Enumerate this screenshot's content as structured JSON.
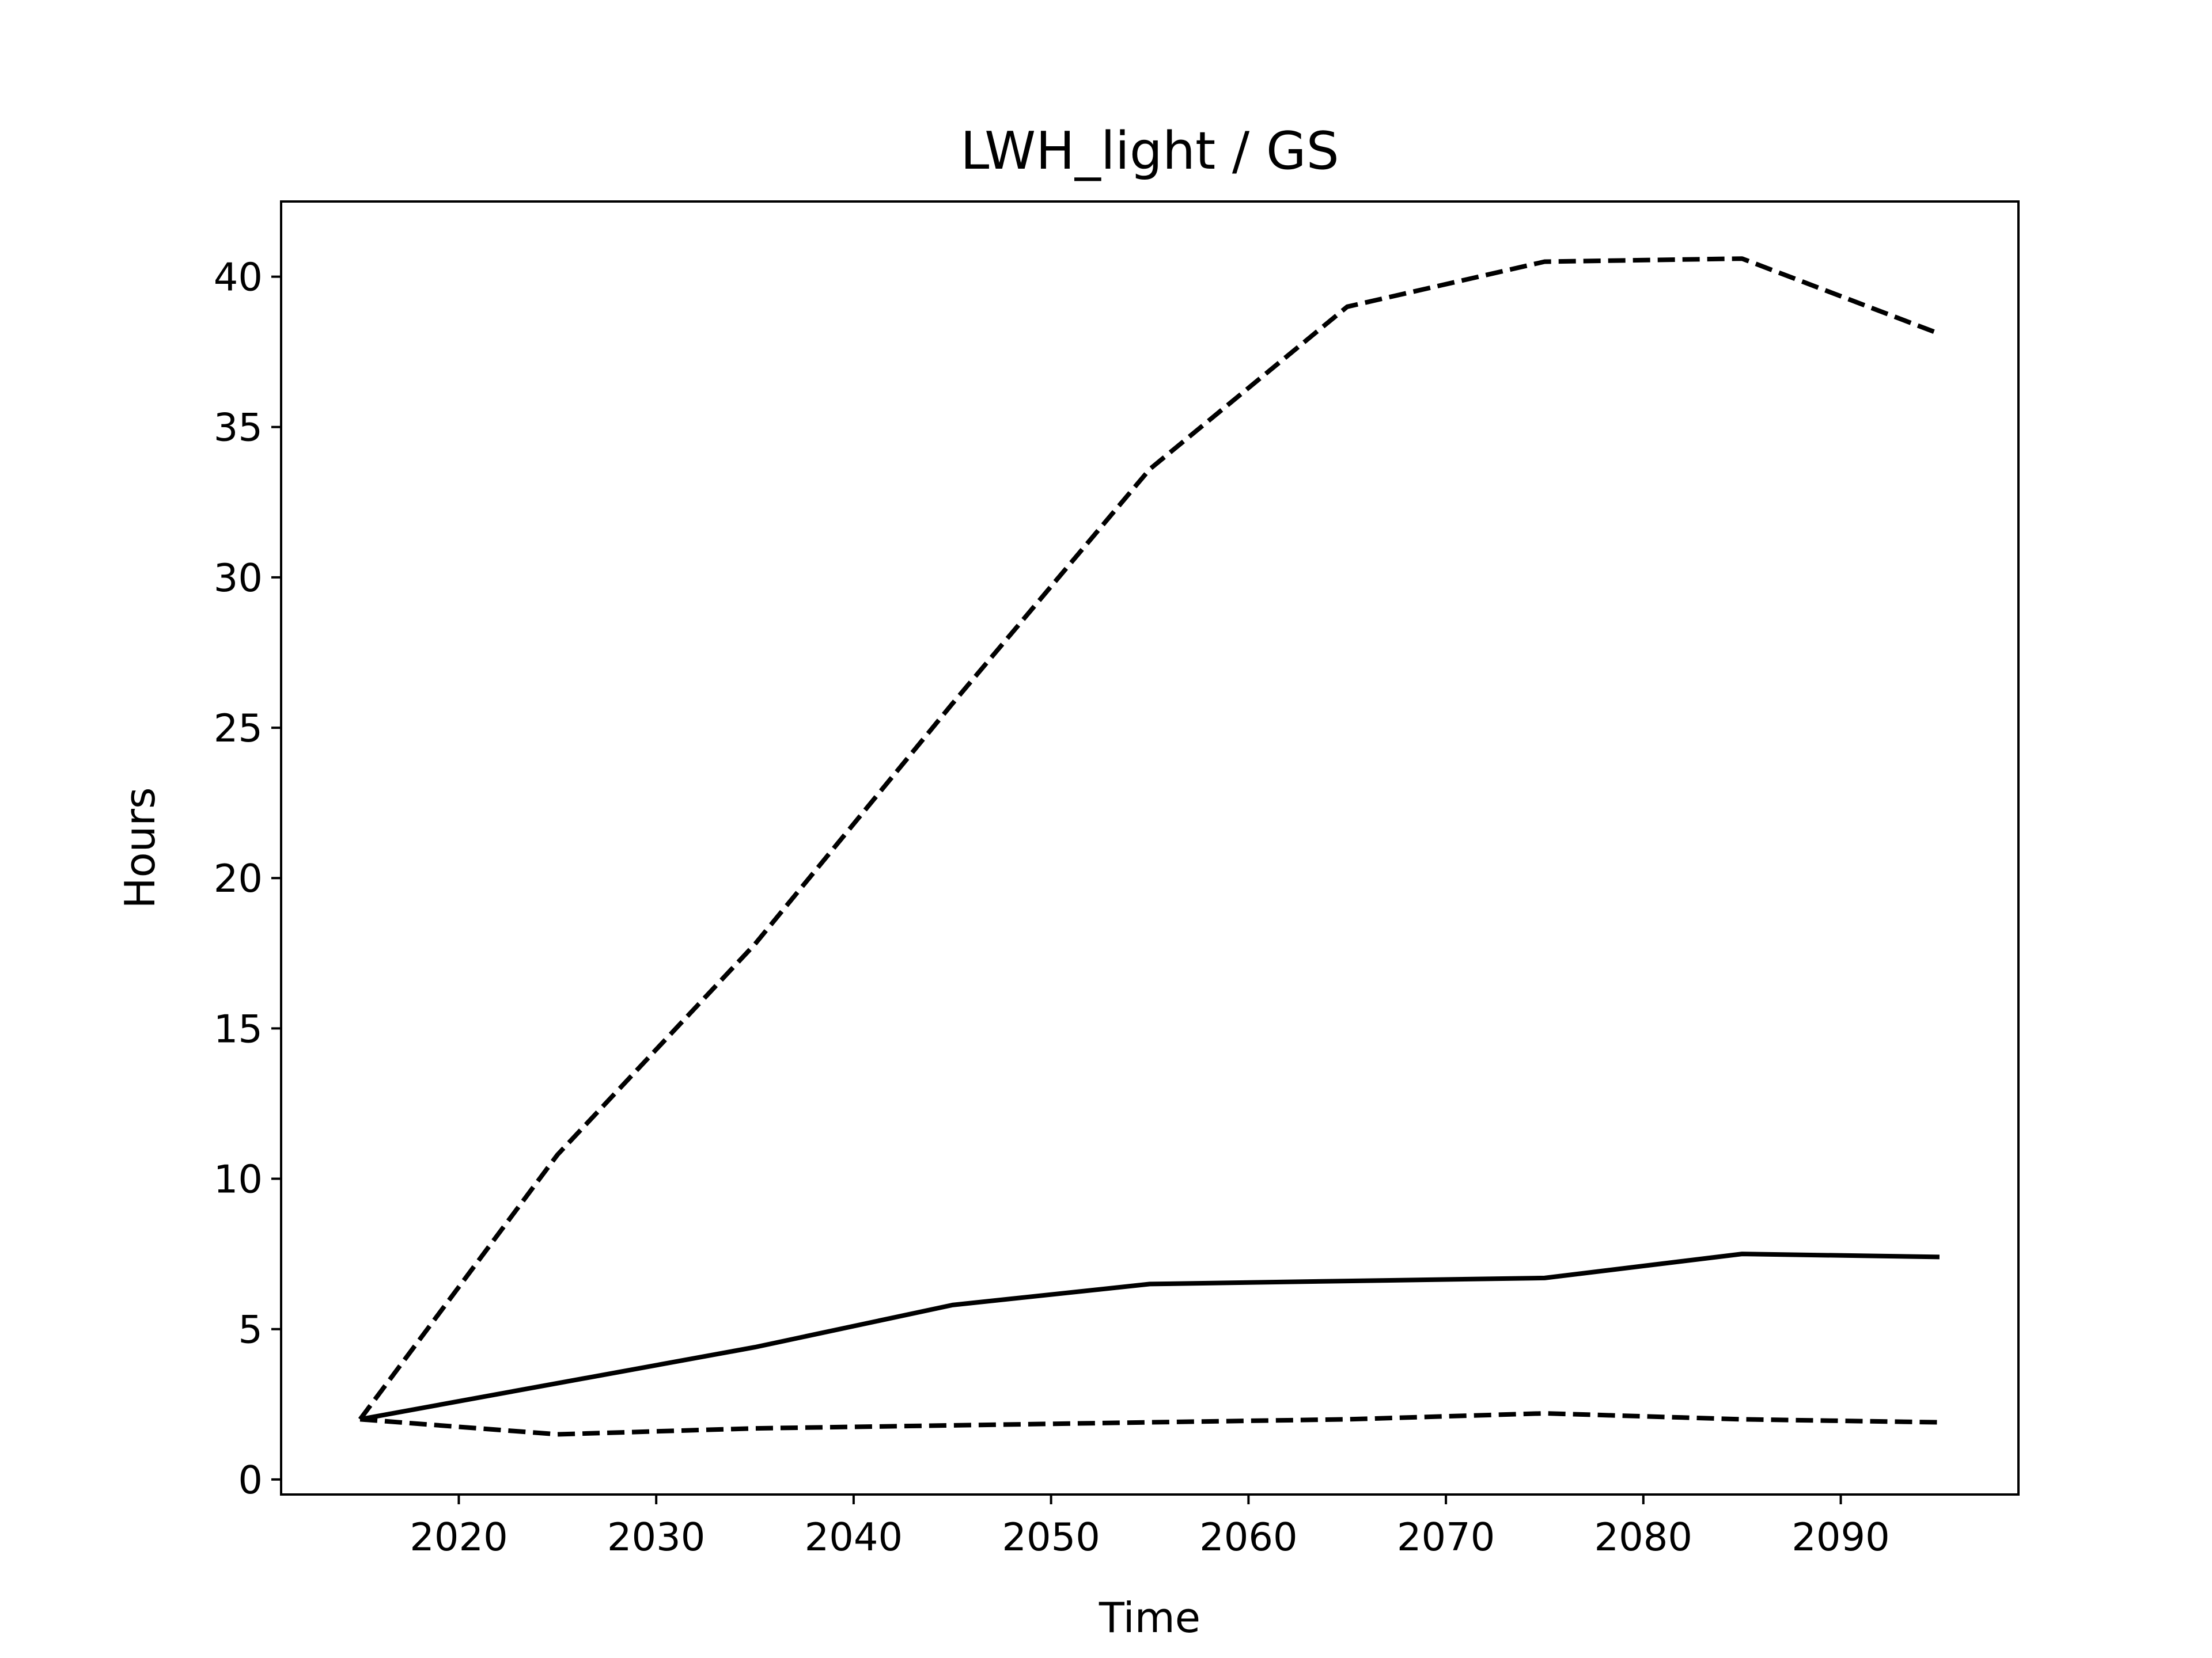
{
  "chart_data": {
    "type": "line",
    "title": "LWH_light / GS",
    "xlabel": "Time",
    "ylabel": "Hours",
    "xlim": [
      2011,
      2099
    ],
    "ylim": [
      -0.5,
      42.5
    ],
    "xticks": [
      2020,
      2030,
      2040,
      2050,
      2060,
      2070,
      2080,
      2090
    ],
    "yticks": [
      0,
      5,
      10,
      15,
      20,
      25,
      30,
      35,
      40
    ],
    "grid": false,
    "legend": "none",
    "line_color": "#000000",
    "x": [
      2015,
      2025,
      2035,
      2045,
      2055,
      2065,
      2075,
      2085,
      2095
    ],
    "series": [
      {
        "style": "dashed",
        "values": [
          2.0,
          10.8,
          17.8,
          25.8,
          33.6,
          39.0,
          40.5,
          40.6,
          38.1
        ]
      },
      {
        "style": "solid",
        "values": [
          2.0,
          3.2,
          4.4,
          5.8,
          6.5,
          6.6,
          6.7,
          7.5,
          7.4
        ]
      },
      {
        "style": "dashed",
        "values": [
          2.0,
          1.5,
          1.7,
          1.8,
          1.9,
          2.0,
          2.2,
          2.0,
          1.9
        ]
      }
    ]
  }
}
